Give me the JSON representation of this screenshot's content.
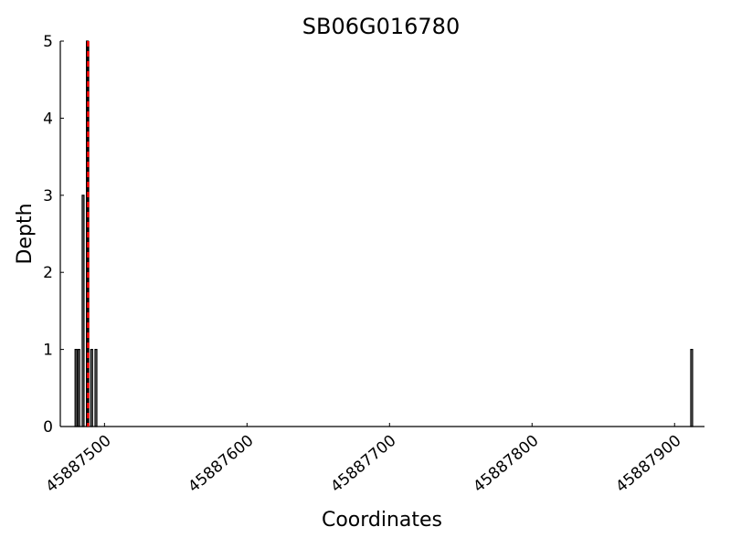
{
  "chart_data": {
    "type": "bar",
    "title": "SB06G016780",
    "xlabel": "Coordinates",
    "ylabel": "Depth",
    "xlim": [
      45887469,
      45887921
    ],
    "ylim": [
      0,
      5
    ],
    "xticks": [
      45887500,
      45887600,
      45887700,
      45887800,
      45887900
    ],
    "xtick_labels": [
      "45887500",
      "45887600",
      "45887700",
      "45887800",
      "45887900"
    ],
    "yticks": [
      0,
      1,
      2,
      3,
      4,
      5
    ],
    "ytick_labels": [
      "0",
      "1",
      "2",
      "3",
      "4",
      "5"
    ],
    "grid": false,
    "bars": {
      "x": [
        45887480,
        45887482,
        45887485,
        45887488,
        45887491,
        45887494,
        45887912
      ],
      "values": [
        1,
        1,
        3,
        5,
        1,
        1,
        1
      ]
    },
    "vline": {
      "x": 45887488.5,
      "color": "#ff0000",
      "style": "dashed"
    },
    "bar_color": "#000000"
  }
}
